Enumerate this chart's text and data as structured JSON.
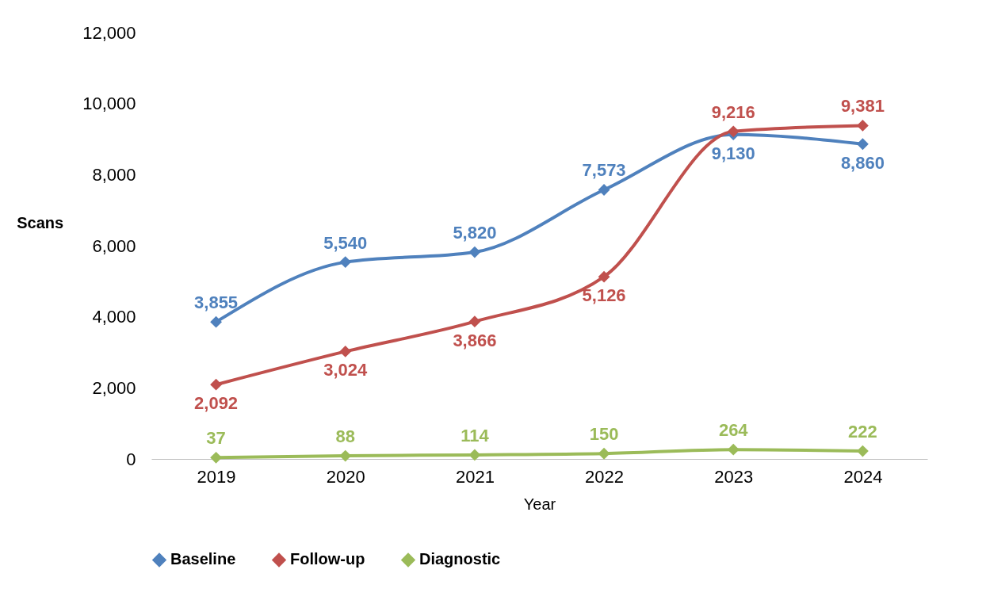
{
  "chart_data": {
    "type": "line",
    "xlabel": "Year",
    "ylabel": "Scans",
    "categories": [
      "2019",
      "2020",
      "2021",
      "2022",
      "2023",
      "2024"
    ],
    "ylim": [
      0,
      12000
    ],
    "yticks": [
      {
        "value": 0,
        "label": "0"
      },
      {
        "value": 2000,
        "label": "2,000"
      },
      {
        "value": 4000,
        "label": "4,000"
      },
      {
        "value": 6000,
        "label": "6,000"
      },
      {
        "value": 8000,
        "label": "8,000"
      },
      {
        "value": 10000,
        "label": "10,000"
      },
      {
        "value": 12000,
        "label": "12,000"
      }
    ],
    "series": [
      {
        "name": "Baseline",
        "color": "#4f81bd",
        "values": [
          3855,
          5540,
          5820,
          7573,
          9130,
          8860
        ],
        "value_labels": [
          "3,855",
          "5,540",
          "5,820",
          "7,573",
          "9,130",
          "8,860"
        ]
      },
      {
        "name": "Follow-up",
        "color": "#c0504d",
        "values": [
          2092,
          3024,
          3866,
          5126,
          9216,
          9381
        ],
        "value_labels": [
          "2,092",
          "3,024",
          "3,866",
          "5,126",
          "9,216",
          "9,381"
        ]
      },
      {
        "name": "Diagnostic",
        "color": "#9bbb59",
        "values": [
          37,
          88,
          114,
          150,
          264,
          222
        ],
        "value_labels": [
          "37",
          "88",
          "114",
          "150",
          "264",
          "222"
        ]
      }
    ],
    "grid": false,
    "legend": "bottom",
    "marker": "diamond",
    "line_style": "solid"
  }
}
